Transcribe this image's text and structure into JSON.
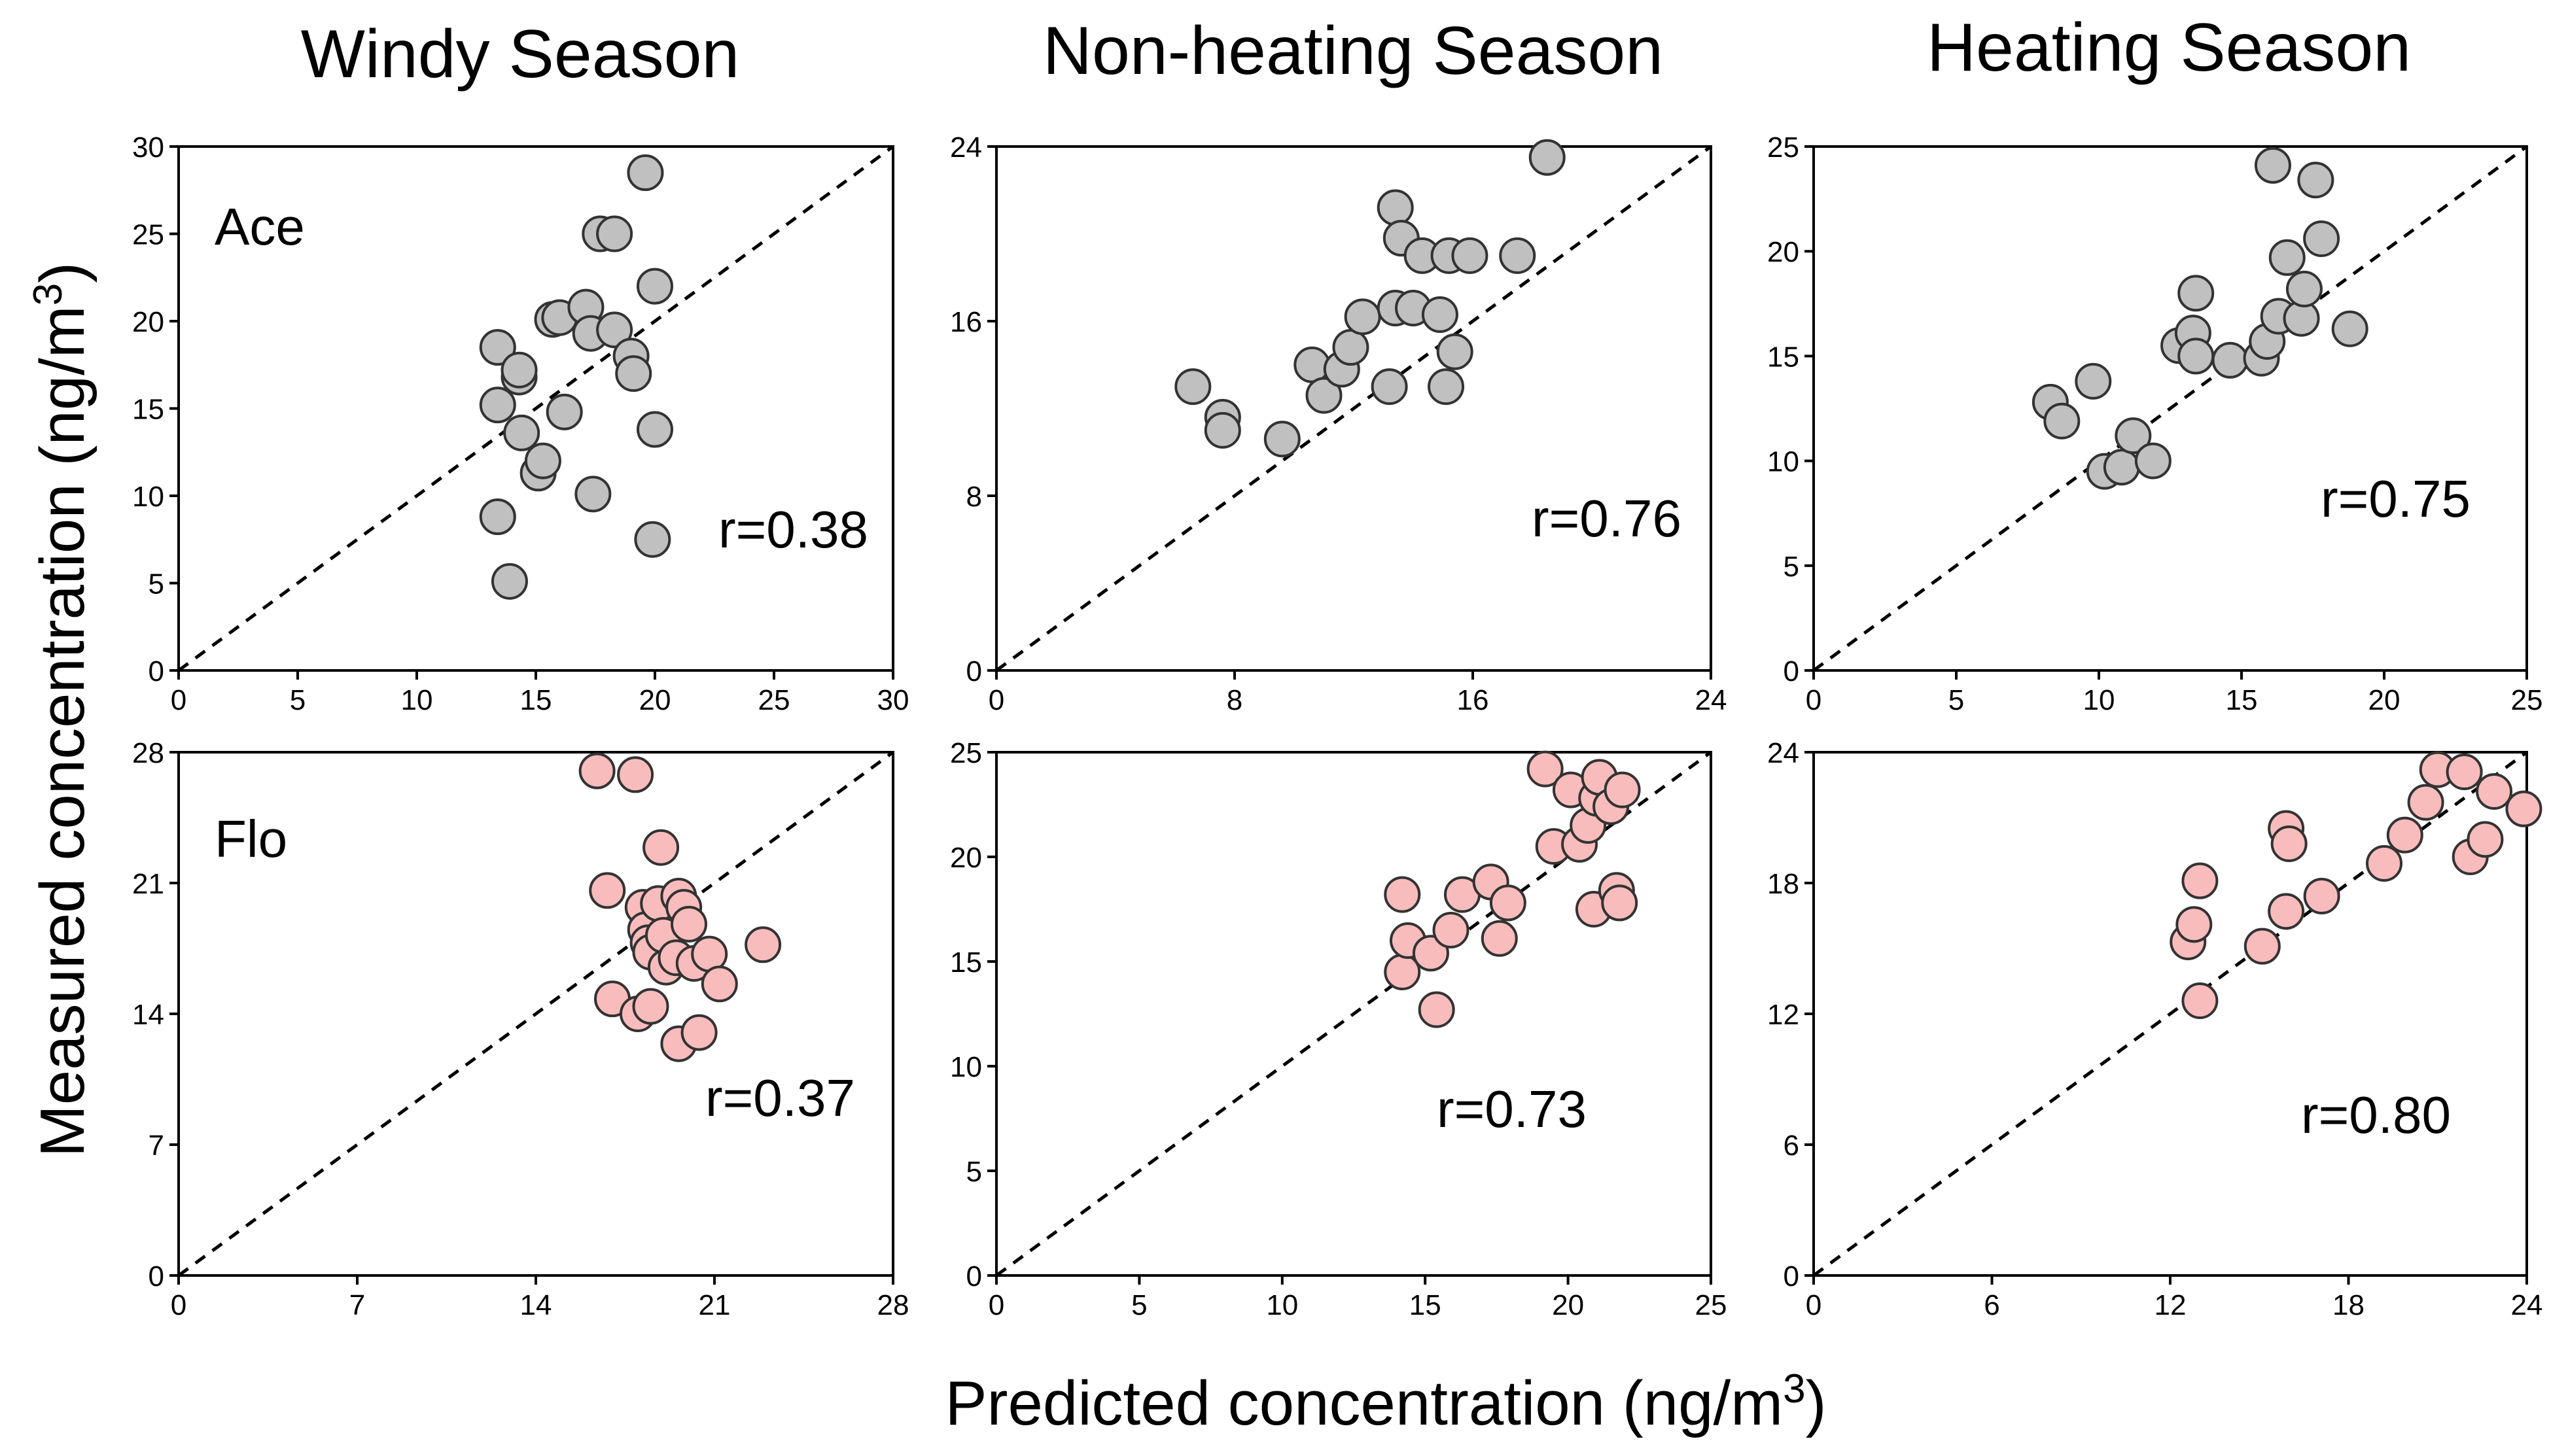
{
  "figure": {
    "column_titles": [
      "Windy Season",
      "Non-heating Season",
      "Heating Season"
    ],
    "xlabel": "Predicted concentration  (ng/m",
    "ylabel": "Measured concentration (ng/m",
    "unit_superscript": "3",
    "colors": {
      "Ace": "#c0c0c0",
      "Flo": "#f8bcbc"
    }
  },
  "chart_data": [
    {
      "type": "scatter",
      "row": 0,
      "col": 0,
      "compound": "Ace",
      "label": "Ace",
      "r_label": "r=0.38",
      "xlim": [
        0,
        30
      ],
      "ylim": [
        0,
        30
      ],
      "xticks": [
        0,
        5,
        10,
        15,
        20,
        25,
        30
      ],
      "yticks": [
        0,
        5,
        10,
        15,
        20,
        25,
        30
      ],
      "points": [
        [
          13.4,
          18.5
        ],
        [
          13.4,
          15.2
        ],
        [
          13.4,
          8.8
        ],
        [
          13.9,
          5.1
        ],
        [
          14.3,
          16.8
        ],
        [
          14.3,
          17.2
        ],
        [
          14.4,
          13.6
        ],
        [
          15.1,
          11.3
        ],
        [
          15.3,
          12.0
        ],
        [
          15.7,
          20.1
        ],
        [
          16.0,
          20.2
        ],
        [
          16.2,
          14.8
        ],
        [
          17.1,
          20.8
        ],
        [
          17.3,
          19.3
        ],
        [
          17.4,
          10.1
        ],
        [
          17.7,
          25.0
        ],
        [
          18.3,
          25.0
        ],
        [
          18.3,
          19.5
        ],
        [
          19.0,
          18.0
        ],
        [
          19.1,
          17.0
        ],
        [
          19.6,
          28.5
        ],
        [
          20.0,
          22.0
        ],
        [
          20.0,
          13.8
        ],
        [
          19.9,
          7.5
        ]
      ]
    },
    {
      "type": "scatter",
      "row": 0,
      "col": 1,
      "compound": "Ace",
      "label": "",
      "r_label": "r=0.76",
      "xlim": [
        0,
        24
      ],
      "ylim": [
        0,
        24
      ],
      "xticks": [
        0,
        8,
        16,
        24
      ],
      "yticks": [
        0,
        8,
        16,
        24
      ],
      "points": [
        [
          6.6,
          13.0
        ],
        [
          7.6,
          11.6
        ],
        [
          7.6,
          11.0
        ],
        [
          9.6,
          10.6
        ],
        [
          10.6,
          14.0
        ],
        [
          11.0,
          12.6
        ],
        [
          11.6,
          13.8
        ],
        [
          11.9,
          14.8
        ],
        [
          12.3,
          16.2
        ],
        [
          13.2,
          13.0
        ],
        [
          13.4,
          16.6
        ],
        [
          13.4,
          21.2
        ],
        [
          13.6,
          19.8
        ],
        [
          14.0,
          16.6
        ],
        [
          14.3,
          19.0
        ],
        [
          14.9,
          16.3
        ],
        [
          15.1,
          13.0
        ],
        [
          15.2,
          19.0
        ],
        [
          15.4,
          14.6
        ],
        [
          15.9,
          19.0
        ],
        [
          17.5,
          19.0
        ],
        [
          18.5,
          23.5
        ]
      ]
    },
    {
      "type": "scatter",
      "row": 0,
      "col": 2,
      "compound": "Ace",
      "label": "",
      "r_label": "r=0.75",
      "xlim": [
        0,
        25
      ],
      "ylim": [
        0,
        25
      ],
      "xticks": [
        0,
        5,
        10,
        15,
        20,
        25
      ],
      "yticks": [
        0,
        5,
        10,
        15,
        20,
        25
      ],
      "points": [
        [
          8.3,
          12.8
        ],
        [
          8.7,
          11.9
        ],
        [
          9.8,
          13.8
        ],
        [
          10.2,
          9.5
        ],
        [
          10.8,
          9.7
        ],
        [
          11.2,
          11.2
        ],
        [
          11.9,
          10.0
        ],
        [
          12.8,
          15.5
        ],
        [
          13.3,
          16.1
        ],
        [
          13.4,
          18.0
        ],
        [
          13.4,
          15.0
        ],
        [
          14.6,
          14.8
        ],
        [
          15.7,
          14.9
        ],
        [
          15.9,
          15.7
        ],
        [
          16.1,
          24.1
        ],
        [
          16.3,
          16.9
        ],
        [
          16.6,
          19.7
        ],
        [
          17.1,
          16.8
        ],
        [
          17.2,
          18.2
        ],
        [
          17.6,
          23.4
        ],
        [
          17.8,
          20.6
        ],
        [
          18.8,
          16.3
        ]
      ]
    },
    {
      "type": "scatter",
      "row": 1,
      "col": 0,
      "compound": "Flo",
      "label": "Flo",
      "r_label": "r=0.37",
      "xlim": [
        0,
        28
      ],
      "ylim": [
        0,
        28
      ],
      "xticks": [
        0,
        7,
        14,
        21,
        28
      ],
      "yticks": [
        0,
        7,
        14,
        21,
        28
      ],
      "points": [
        [
          16.4,
          27.0
        ],
        [
          16.8,
          20.6
        ],
        [
          17.0,
          14.8
        ],
        [
          17.9,
          26.8
        ],
        [
          18.0,
          14.0
        ],
        [
          18.2,
          19.7
        ],
        [
          18.3,
          18.5
        ],
        [
          18.4,
          17.8
        ],
        [
          18.5,
          14.4
        ],
        [
          18.5,
          17.3
        ],
        [
          18.8,
          19.9
        ],
        [
          18.9,
          22.9
        ],
        [
          19.0,
          18.2
        ],
        [
          19.1,
          16.5
        ],
        [
          19.5,
          17.0
        ],
        [
          19.6,
          20.3
        ],
        [
          19.6,
          12.4
        ],
        [
          19.8,
          19.7
        ],
        [
          20.0,
          18.8
        ],
        [
          20.2,
          16.7
        ],
        [
          20.4,
          13.0
        ],
        [
          20.8,
          17.2
        ],
        [
          21.2,
          15.6
        ],
        [
          22.9,
          17.7
        ]
      ]
    },
    {
      "type": "scatter",
      "row": 1,
      "col": 1,
      "compound": "Flo",
      "label": "",
      "r_label": "r=0.73",
      "xlim": [
        0,
        25
      ],
      "ylim": [
        0,
        25
      ],
      "xticks": [
        0,
        5,
        10,
        15,
        20,
        25
      ],
      "yticks": [
        0,
        5,
        10,
        15,
        20,
        25
      ],
      "points": [
        [
          14.2,
          18.2
        ],
        [
          14.2,
          14.5
        ],
        [
          14.4,
          16.0
        ],
        [
          15.2,
          15.4
        ],
        [
          15.4,
          12.7
        ],
        [
          15.9,
          16.5
        ],
        [
          16.3,
          18.2
        ],
        [
          17.3,
          18.8
        ],
        [
          17.6,
          16.1
        ],
        [
          17.9,
          17.8
        ],
        [
          19.2,
          24.2
        ],
        [
          19.5,
          20.5
        ],
        [
          20.1,
          23.2
        ],
        [
          20.4,
          20.6
        ],
        [
          20.7,
          21.5
        ],
        [
          20.9,
          17.5
        ],
        [
          21.0,
          22.8
        ],
        [
          21.1,
          23.8
        ],
        [
          21.5,
          22.4
        ],
        [
          21.7,
          18.4
        ],
        [
          21.8,
          17.8
        ],
        [
          21.9,
          23.2
        ]
      ]
    },
    {
      "type": "scatter",
      "row": 1,
      "col": 2,
      "compound": "Flo",
      "label": "",
      "r_label": "r=0.80",
      "xlim": [
        0,
        24
      ],
      "ylim": [
        0,
        24
      ],
      "xticks": [
        0,
        6,
        12,
        18,
        24
      ],
      "yticks": [
        0,
        6,
        12,
        18,
        24
      ],
      "points": [
        [
          12.6,
          15.3
        ],
        [
          12.8,
          16.1
        ],
        [
          13.0,
          18.1
        ],
        [
          13.0,
          12.6
        ],
        [
          15.1,
          15.1
        ],
        [
          15.9,
          16.7
        ],
        [
          15.9,
          20.5
        ],
        [
          16.0,
          19.8
        ],
        [
          17.1,
          17.4
        ],
        [
          19.2,
          18.9
        ],
        [
          19.9,
          20.2
        ],
        [
          20.6,
          21.7
        ],
        [
          21.0,
          23.2
        ],
        [
          21.9,
          23.1
        ],
        [
          22.1,
          19.2
        ],
        [
          22.6,
          20.0
        ],
        [
          22.9,
          22.2
        ],
        [
          23.9,
          21.4
        ]
      ]
    }
  ]
}
